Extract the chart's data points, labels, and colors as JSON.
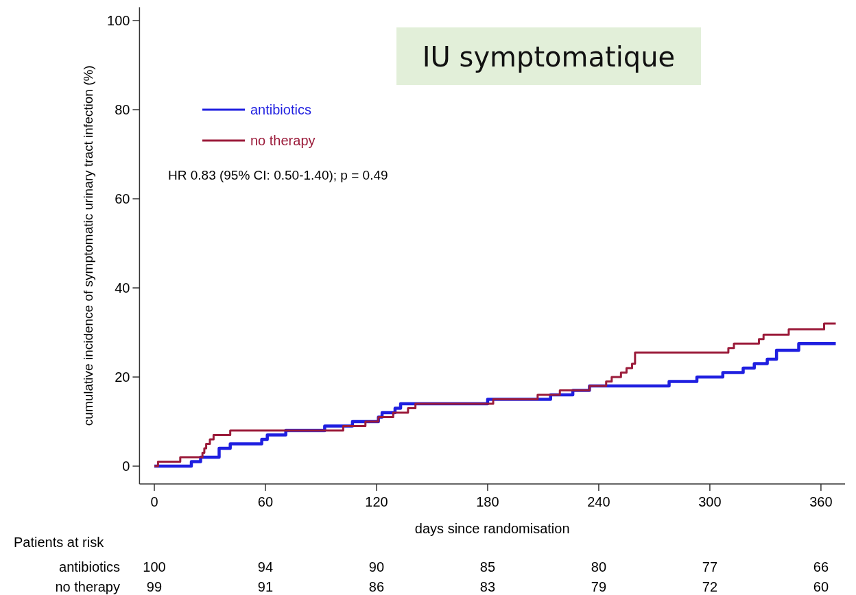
{
  "chart_data": {
    "type": "step",
    "title": "IU symptomatique",
    "xlabel": "days since randomisation",
    "ylabel": "cumulative incidence of symptomatic urinary tract infection (%)",
    "xlim": [
      -8,
      373
    ],
    "ylim": [
      -4,
      103
    ],
    "xticks": [
      0,
      60,
      120,
      180,
      240,
      300,
      360
    ],
    "yticks": [
      0,
      20,
      40,
      60,
      80,
      100
    ],
    "grid": false,
    "legend": "top left",
    "marker": "none",
    "line_style": "solid",
    "series": [
      {
        "name": "antibiotics",
        "color": "#1f1fe0",
        "x": [
          0,
          20,
          25,
          35,
          41,
          58,
          61,
          71,
          92,
          107,
          121,
          123,
          130,
          133,
          180,
          214,
          226,
          235,
          278,
          293,
          307,
          318,
          324,
          331,
          336,
          348,
          368
        ],
        "values": [
          0,
          1,
          2,
          4,
          5,
          6,
          7,
          8,
          9,
          10,
          11,
          12,
          13,
          14,
          15,
          16,
          17,
          18,
          19,
          20,
          21,
          22,
          23,
          24,
          26,
          27.5,
          27.5
        ]
      },
      {
        "name": "no therapy",
        "color": "#9b1b3a",
        "x": [
          0,
          2,
          14,
          26,
          27,
          28,
          30,
          32,
          41,
          102,
          114,
          121,
          129,
          137,
          141,
          183,
          207,
          219,
          235,
          244,
          247,
          252,
          255,
          258,
          259.6,
          310,
          313,
          326.5,
          329,
          342.6,
          361.7,
          368
        ],
        "values": [
          0,
          1,
          2,
          3,
          4,
          5,
          6,
          7,
          8,
          9,
          10,
          11,
          12,
          13,
          14,
          15,
          16,
          17,
          18,
          19,
          20,
          21,
          22,
          23,
          25.5,
          26.5,
          27.5,
          28.5,
          29.5,
          30.7,
          32,
          32
        ]
      }
    ],
    "annotations": [
      "HR 0.83 (95% CI: 0.50-1.40); p = 0.49",
      "Patients at risk",
      "antibiotics",
      "100",
      "94",
      "90",
      "85",
      "80",
      "77",
      "66",
      "no therapy",
      "99",
      "91",
      "86",
      "83",
      "79",
      "72",
      "60"
    ]
  }
}
